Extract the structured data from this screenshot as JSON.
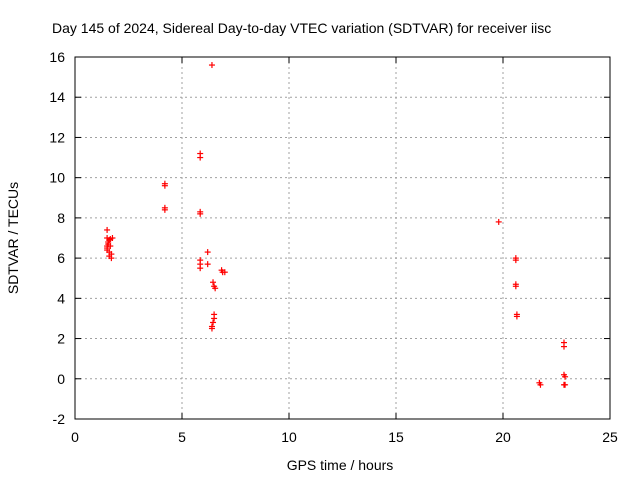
{
  "chart_data": {
    "type": "scatter",
    "title": "Day 145 of 2024, Sidereal Day-to-day VTEC variation (SDTVAR) for receiver iisc",
    "xlabel": "GPS time / hours",
    "ylabel": "SDTVAR / TECUs",
    "xlim": [
      0,
      25
    ],
    "ylim": [
      -2,
      16
    ],
    "xticks": [
      0,
      5,
      10,
      15,
      20,
      25
    ],
    "yticks": [
      -2,
      0,
      2,
      4,
      6,
      8,
      10,
      12,
      14,
      16
    ],
    "grid": true,
    "marker": "+",
    "marker_color": "#ff0000",
    "series": [
      {
        "name": "SDTVAR",
        "points": [
          [
            1.5,
            7.4
          ],
          [
            1.5,
            7.0
          ],
          [
            1.55,
            6.8
          ],
          [
            1.5,
            6.6
          ],
          [
            1.5,
            6.4
          ],
          [
            1.6,
            6.9
          ],
          [
            1.65,
            6.6
          ],
          [
            1.6,
            6.3
          ],
          [
            1.7,
            6.2
          ],
          [
            1.75,
            7.0
          ],
          [
            1.6,
            6.1
          ],
          [
            1.55,
            6.7
          ],
          [
            1.7,
            6.0
          ],
          [
            1.65,
            6.95
          ],
          [
            1.5,
            6.5
          ],
          [
            4.2,
            9.7
          ],
          [
            4.2,
            9.6
          ],
          [
            4.2,
            8.5
          ],
          [
            4.2,
            8.4
          ],
          [
            5.85,
            11.2
          ],
          [
            5.85,
            11.0
          ],
          [
            5.85,
            8.3
          ],
          [
            5.85,
            8.2
          ],
          [
            5.85,
            5.9
          ],
          [
            5.85,
            5.7
          ],
          [
            5.85,
            5.5
          ],
          [
            6.2,
            6.3
          ],
          [
            6.2,
            5.7
          ],
          [
            6.4,
            15.6
          ],
          [
            6.45,
            4.8
          ],
          [
            6.5,
            4.6
          ],
          [
            6.55,
            4.5
          ],
          [
            6.5,
            3.2
          ],
          [
            6.5,
            3.0
          ],
          [
            6.45,
            2.8
          ],
          [
            6.4,
            2.6
          ],
          [
            6.4,
            2.5
          ],
          [
            6.85,
            5.4
          ],
          [
            6.9,
            5.3
          ],
          [
            7.0,
            5.3
          ],
          [
            19.8,
            7.8
          ],
          [
            20.6,
            6.0
          ],
          [
            20.6,
            5.9
          ],
          [
            20.6,
            4.7
          ],
          [
            20.6,
            4.6
          ],
          [
            20.65,
            3.2
          ],
          [
            20.65,
            3.1
          ],
          [
            21.7,
            -0.2
          ],
          [
            21.75,
            -0.3
          ],
          [
            22.85,
            1.8
          ],
          [
            22.85,
            1.6
          ],
          [
            22.85,
            0.2
          ],
          [
            22.9,
            0.1
          ],
          [
            22.85,
            -0.3
          ],
          [
            22.9,
            -0.3
          ]
        ]
      }
    ]
  }
}
